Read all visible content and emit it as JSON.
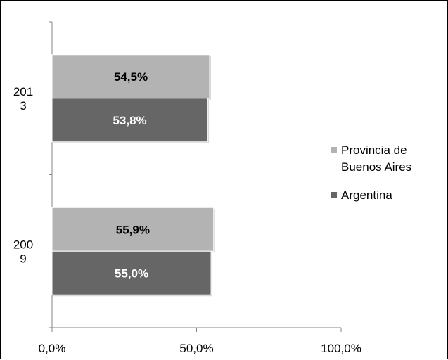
{
  "chart_data": {
    "type": "bar",
    "orientation": "horizontal",
    "categories": [
      {
        "lines": [
          "200",
          "9"
        ]
      },
      {
        "lines": [
          "201",
          "3"
        ]
      }
    ],
    "series": [
      {
        "name_lines": [
          "Argentina"
        ],
        "values": [
          55.0,
          53.8
        ],
        "labels": [
          "55,0%",
          "53,8%"
        ],
        "color": "#666666",
        "label_color": "#ffffff"
      },
      {
        "name_lines": [
          "Provincia de",
          "Buenos Aires"
        ],
        "values": [
          55.9,
          54.5
        ],
        "labels": [
          "55,9%",
          "54,5%"
        ],
        "color": "#b3b3b3",
        "label_color": "#000000"
      }
    ],
    "xlim": [
      0,
      100
    ],
    "xticks": [
      0,
      50,
      100
    ],
    "xtick_labels": [
      "0,0%",
      "50,0%",
      "100,0%"
    ],
    "grid": false,
    "legend_position": "right",
    "title": "",
    "xlabel": "",
    "ylabel": ""
  }
}
